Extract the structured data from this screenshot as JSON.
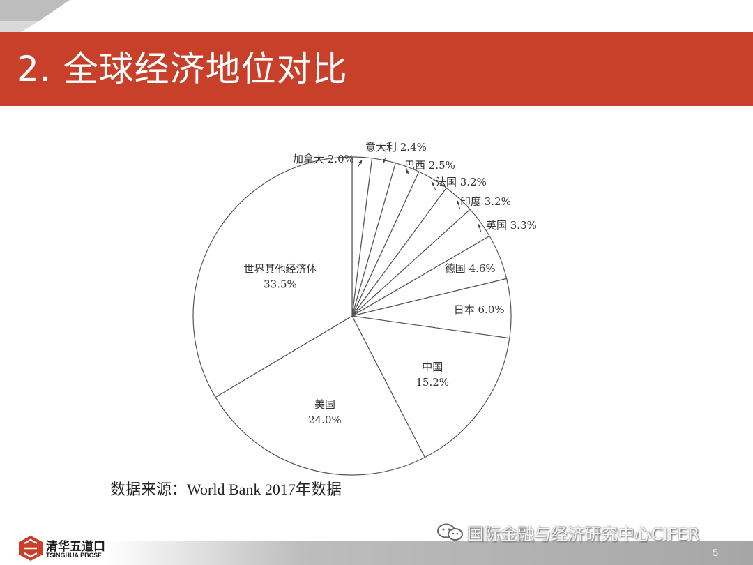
{
  "slide": {
    "title": "2. 全球经济地位对比",
    "source": "数据来源：World Bank 2017年数据",
    "page_number": "5",
    "colors": {
      "title_bar": "#c9402a",
      "bottom_bar": "#a6a6a6",
      "outline": "#555555"
    }
  },
  "logo": {
    "name_cn": "清华五道口",
    "name_en": "TSINGHUA PBCSF"
  },
  "watermark": {
    "text": "国际金融与经济研究中心CIFER",
    "icon": "wechat-icon"
  },
  "chart_data": {
    "type": "pie",
    "title": "",
    "unit": "%",
    "slices": [
      {
        "name": "加拿大",
        "value": 2.0,
        "label": "加拿大 2.0%"
      },
      {
        "name": "意大利",
        "value": 2.4,
        "label": "意大利 2.4%"
      },
      {
        "name": "巴西",
        "value": 2.5,
        "label": "巴西 2.5%"
      },
      {
        "name": "法国",
        "value": 3.2,
        "label": "法国 3.2%"
      },
      {
        "name": "印度",
        "value": 3.2,
        "label": "印度 3.2%"
      },
      {
        "name": "英国",
        "value": 3.3,
        "label": "英国 3.3%"
      },
      {
        "name": "德国",
        "value": 4.6,
        "label": "德国 4.6%"
      },
      {
        "name": "日本",
        "value": 6.0,
        "label": "日本 6.0%"
      },
      {
        "name": "中国",
        "value": 15.2,
        "label": "15.2%"
      },
      {
        "name": "美国",
        "value": 24.0,
        "label": "24.0%"
      },
      {
        "name": "世界其他经济体",
        "value": 33.5,
        "label": "33.5%"
      }
    ]
  }
}
